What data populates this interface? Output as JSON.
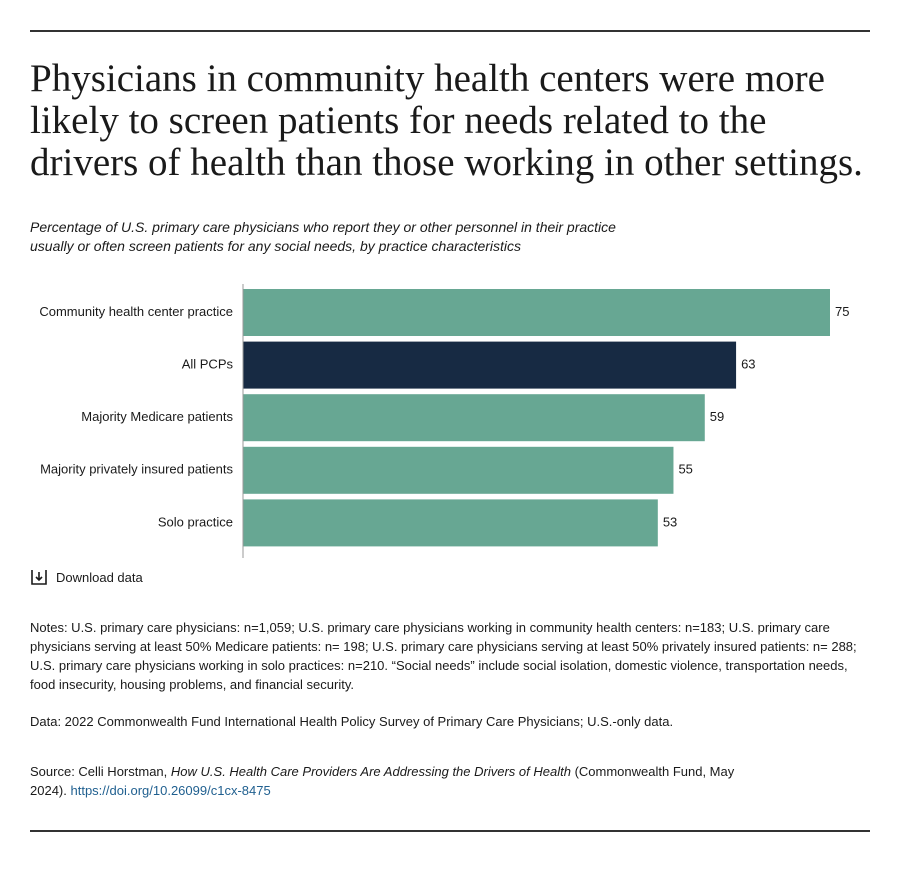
{
  "chart_data": {
    "type": "bar",
    "orientation": "horizontal",
    "title": "Physicians in community health centers were more likely to screen patients for needs related to the drivers of health than those working in other settings.",
    "subtitle": "Percentage of U.S. primary care physicians who report they or other personnel in their practice usually or often screen patients for any social needs, by practice characteristics",
    "categories": [
      "Community health center practice",
      "All PCPs",
      "Majority Medicare patients",
      "Majority privately insured patients",
      "Solo practice"
    ],
    "values": [
      75,
      63,
      59,
      55,
      53
    ],
    "colors": [
      "#67a793",
      "#172a43",
      "#67a793",
      "#67a793",
      "#67a793"
    ],
    "xlim": [
      0,
      75
    ]
  },
  "download": "Download data",
  "notes": "Notes: U.S. primary care physicians: n=1,059; U.S. primary care physicians working in community health centers: n=183; U.S. primary care physicians serving at least 50% Medicare patients: n= 198; U.S. primary care physicians serving at least 50% privately insured patients: n= 288; U.S. primary care physicians working in solo practices: n=210. “Social needs” include social isolation, domestic violence, transportation needs, food insecurity, housing problems, and financial security.",
  "data_note": "Data: 2022 Commonwealth Fund International Health Policy Survey of Primary Care Physicians; U.S.-only data.",
  "source": {
    "prefix": "Source: Celli Horstman,",
    "title": "How U.S. Health Care Providers Are Addressing the Drivers of Health",
    "suffix": "(Commonwealth Fund, May 2024).",
    "link": "https://doi.org/10.26099/c1cx-8475"
  }
}
